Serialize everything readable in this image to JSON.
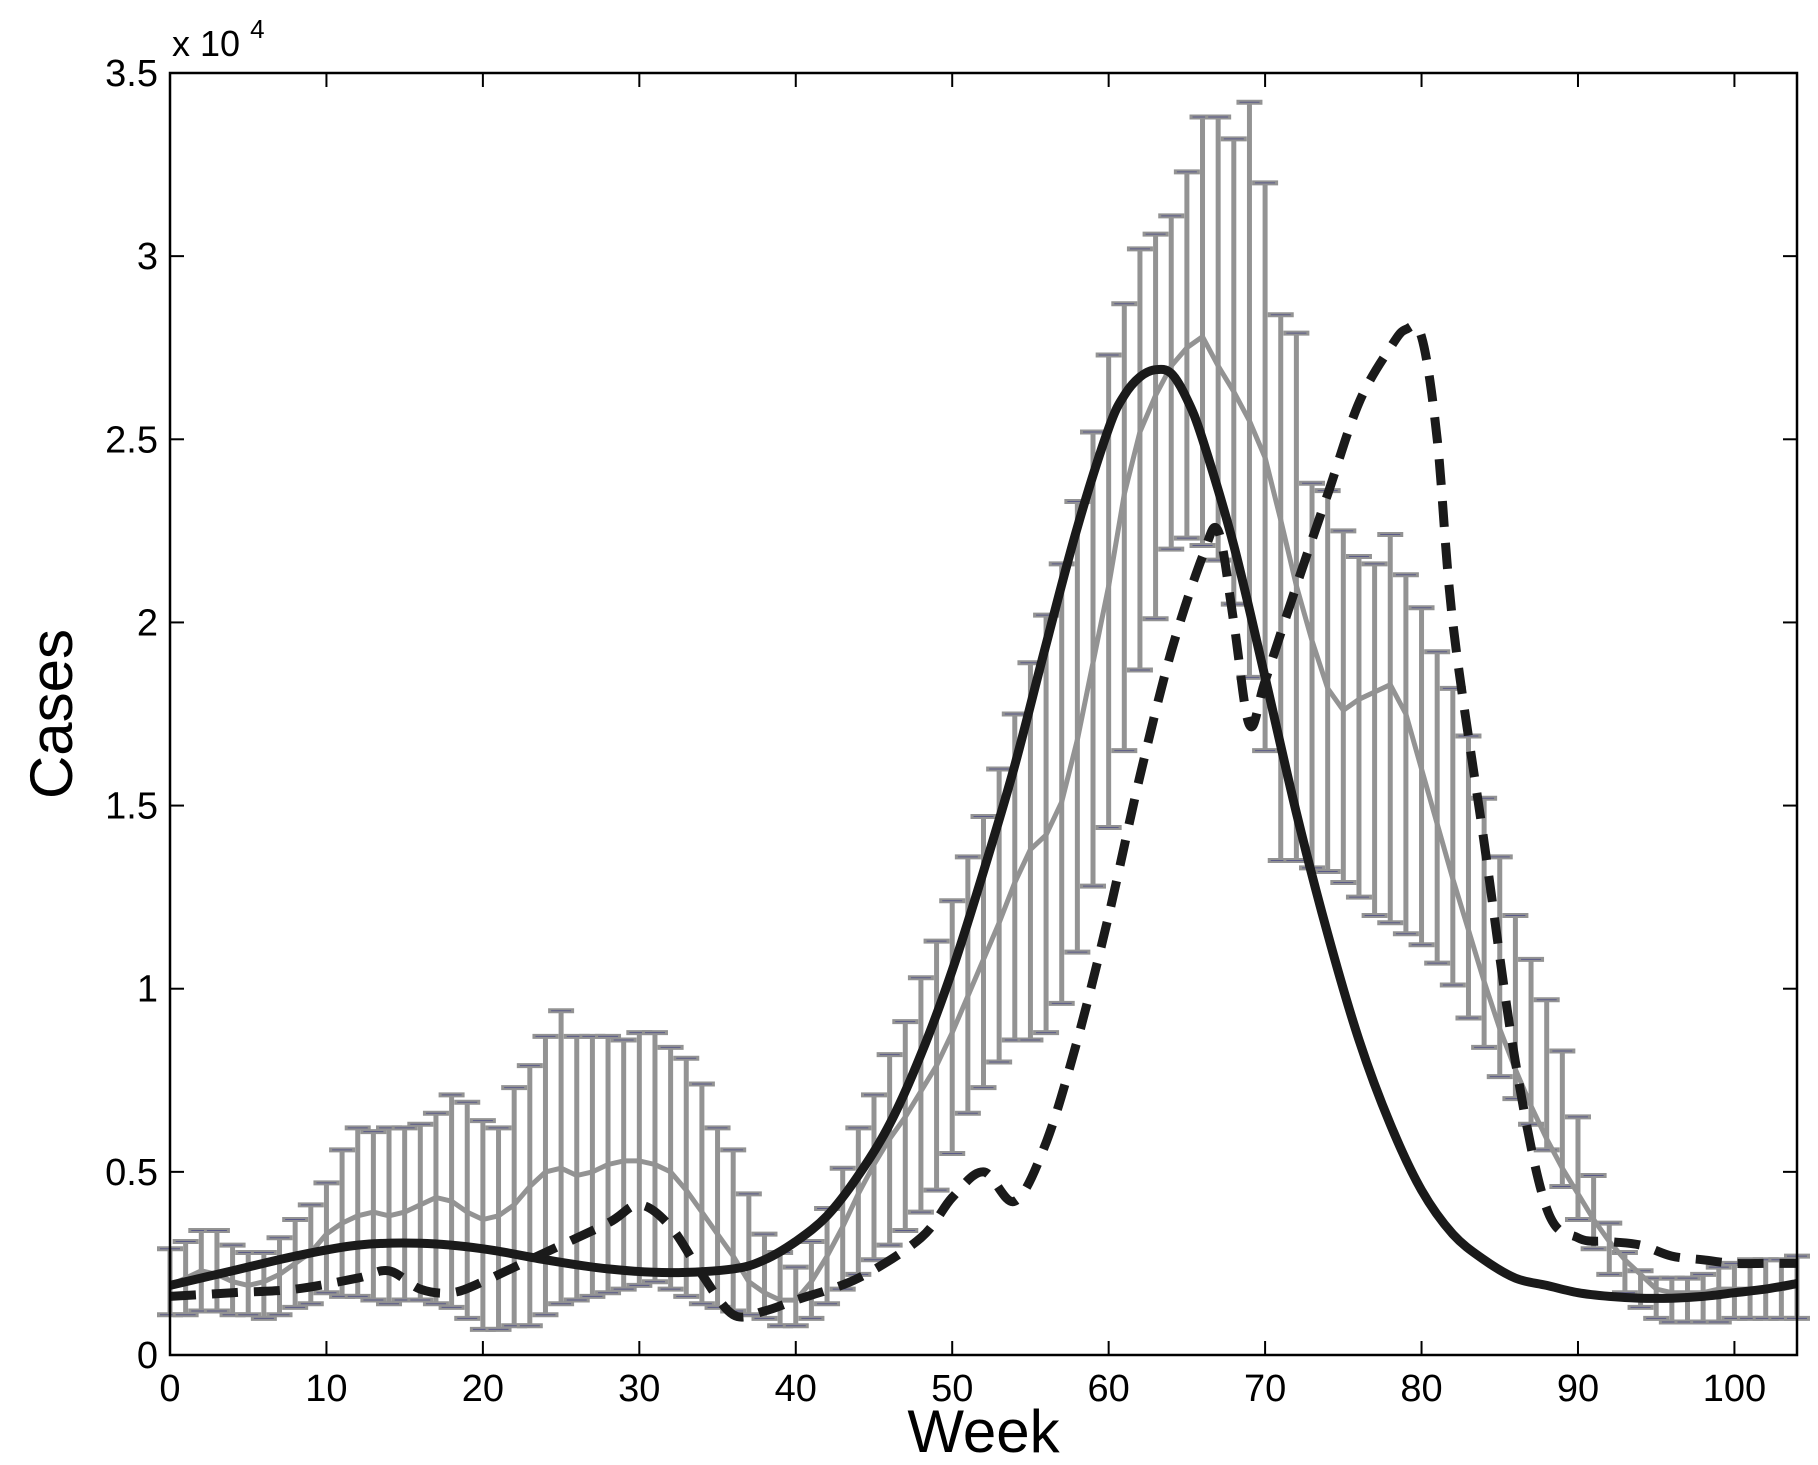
{
  "chart_data": {
    "type": "line",
    "title": "",
    "xlabel": "Week",
    "ylabel": "Cases",
    "y_multiplier_label": {
      "base": "x 10",
      "exponent": "4"
    },
    "xlim": [
      0,
      104
    ],
    "ylim": [
      0,
      35000
    ],
    "xticks": [
      0,
      10,
      20,
      30,
      40,
      50,
      60,
      70,
      80,
      90,
      100
    ],
    "xtick_labels": [
      "0",
      "10",
      "20",
      "30",
      "40",
      "50",
      "60",
      "70",
      "80",
      "90",
      "100"
    ],
    "yticks": [
      0,
      5000,
      10000,
      15000,
      20000,
      25000,
      30000,
      35000
    ],
    "ytick_labels": [
      "0",
      "0.5",
      "1",
      "1.5",
      "2",
      "2.5",
      "3",
      "3.5"
    ],
    "grid": false,
    "legend": "none",
    "colors": {
      "observed": "#939393",
      "model": "#1a1a1a",
      "errorbar_cap": "#5a5a88"
    },
    "series": [
      {
        "style": "gray-errorbars",
        "x": [
          0,
          1,
          2,
          3,
          4,
          5,
          6,
          7,
          8,
          9,
          10,
          11,
          12,
          13,
          14,
          15,
          16,
          17,
          18,
          19,
          20,
          21,
          22,
          23,
          24,
          25,
          26,
          27,
          28,
          29,
          30,
          31,
          32,
          33,
          34,
          35,
          36,
          37,
          38,
          39,
          40,
          41,
          42,
          43,
          44,
          45,
          46,
          47,
          48,
          49,
          50,
          51,
          52,
          53,
          54,
          55,
          56,
          57,
          58,
          59,
          60,
          61,
          62,
          63,
          64,
          65,
          66,
          67,
          68,
          69,
          70,
          71,
          72,
          73,
          74,
          75,
          76,
          77,
          78,
          79,
          80,
          81,
          82,
          83,
          84,
          85,
          86,
          87,
          88,
          89,
          90,
          91,
          92,
          93,
          94,
          95,
          96,
          97,
          98,
          99,
          100,
          101,
          102,
          103,
          104
        ],
        "y": [
          1900,
          2100,
          2300,
          2200,
          2000,
          1900,
          2000,
          2200,
          2500,
          2800,
          3300,
          3600,
          3800,
          3900,
          3800,
          3900,
          4100,
          4300,
          4200,
          3900,
          3700,
          3800,
          4100,
          4600,
          5000,
          5100,
          4900,
          5000,
          5200,
          5300,
          5300,
          5200,
          5000,
          4500,
          3900,
          3300,
          2700,
          2000,
          1700,
          1500,
          1500,
          2000,
          2700,
          3500,
          4400,
          5200,
          5900,
          6500,
          7200,
          7900,
          8800,
          9800,
          10800,
          11800,
          12900,
          13800,
          14200,
          15100,
          16800,
          18900,
          21000,
          23500,
          25200,
          26200,
          27000,
          27500,
          27800,
          27000,
          26300,
          25500,
          24500,
          22800,
          21000,
          19500,
          18200,
          17600,
          17900,
          18100,
          18300,
          17500,
          16000,
          14500,
          13000,
          11600,
          10200,
          8900,
          7800,
          6800,
          5900,
          5100,
          4400,
          3700,
          3100,
          2600,
          2200,
          1800,
          1700,
          1700,
          1700,
          1800,
          1800,
          1800,
          1800,
          1800,
          1900
        ],
        "lower": [
          1100,
          1100,
          1200,
          1200,
          1100,
          1100,
          1000,
          1100,
          1300,
          1400,
          1700,
          1600,
          1600,
          1500,
          1400,
          1500,
          1500,
          1400,
          1300,
          1000,
          700,
          700,
          800,
          800,
          1100,
          1400,
          1500,
          1600,
          1700,
          1800,
          1900,
          2000,
          1800,
          1600,
          1400,
          1300,
          1200,
          1100,
          1000,
          800,
          800,
          1000,
          1400,
          1800,
          2200,
          2600,
          3000,
          3400,
          3900,
          4500,
          5500,
          6600,
          7300,
          8000,
          8600,
          8600,
          8800,
          9600,
          11000,
          12800,
          14400,
          16500,
          18700,
          20100,
          22000,
          22300,
          22100,
          21700,
          20500,
          18500,
          16500,
          13500,
          13500,
          13300,
          13200,
          12900,
          12500,
          12000,
          11800,
          11500,
          11200,
          10700,
          10100,
          9200,
          8400,
          7600,
          7000,
          6300,
          5600,
          4600,
          3700,
          2900,
          2200,
          1700,
          1300,
          1000,
          900,
          900,
          900,
          900,
          1000,
          1000,
          1000,
          1000,
          1000
        ],
        "upper": [
          2900,
          3100,
          3400,
          3400,
          3000,
          2800,
          2800,
          3200,
          3700,
          4100,
          4700,
          5600,
          6200,
          6100,
          6200,
          6200,
          6300,
          6600,
          7100,
          6900,
          6400,
          6200,
          7300,
          7900,
          8700,
          9400,
          8700,
          8700,
          8700,
          8600,
          8800,
          8800,
          8400,
          8100,
          7400,
          6200,
          5600,
          4400,
          3300,
          2800,
          2400,
          3100,
          4000,
          5100,
          6200,
          7100,
          8200,
          9100,
          10300,
          11300,
          12400,
          13600,
          14700,
          16000,
          17500,
          18900,
          20200,
          21600,
          23300,
          25200,
          27300,
          28700,
          30200,
          30600,
          31100,
          32300,
          33800,
          33800,
          33200,
          34200,
          32000,
          28400,
          27900,
          23800,
          23600,
          22500,
          21800,
          21600,
          22400,
          21300,
          20400,
          19200,
          18200,
          16900,
          15200,
          13600,
          12000,
          10800,
          9700,
          8300,
          6500,
          4900,
          3600,
          2800,
          2300,
          2100,
          2100,
          2100,
          2200,
          2400,
          2500,
          2600,
          2600,
          2600,
          2700
        ]
      },
      {
        "style": "solid",
        "x": [
          0,
          4,
          8,
          12,
          16,
          20,
          24,
          28,
          32,
          36,
          38,
          40,
          42,
          44,
          46,
          48,
          50,
          52,
          54,
          56,
          58,
          60,
          61,
          62,
          63,
          64,
          65,
          66,
          68,
          70,
          72,
          74,
          76,
          78,
          80,
          82,
          84,
          86,
          88,
          90,
          92,
          94,
          96,
          98,
          100,
          102,
          104
        ],
        "y": [
          1900,
          2300,
          2700,
          3000,
          3050,
          2900,
          2600,
          2350,
          2250,
          2350,
          2600,
          3100,
          3800,
          4900,
          6300,
          8200,
          10500,
          13200,
          16100,
          19400,
          22600,
          25300,
          26200,
          26700,
          26900,
          26800,
          26100,
          25000,
          22100,
          18500,
          14800,
          11500,
          8600,
          6300,
          4500,
          3300,
          2600,
          2100,
          1900,
          1700,
          1600,
          1550,
          1550,
          1600,
          1700,
          1800,
          1950
        ]
      },
      {
        "style": "dashed",
        "x": [
          0,
          4,
          8,
          12,
          14,
          16,
          18,
          20,
          24,
          28,
          30,
          32,
          34,
          36,
          38,
          40,
          44,
          48,
          50,
          52,
          54,
          56,
          58,
          60,
          62,
          64,
          66,
          67,
          68,
          69,
          70,
          72,
          74,
          76,
          78,
          79,
          80,
          81,
          82,
          84,
          86,
          88,
          90,
          92,
          94,
          96,
          98,
          100,
          102,
          104
        ],
        "y": [
          1600,
          1700,
          1800,
          2100,
          2300,
          1800,
          1700,
          2000,
          2800,
          3600,
          4100,
          3500,
          2200,
          1100,
          1200,
          1500,
          2100,
          3200,
          4300,
          5000,
          4200,
          5800,
          8600,
          12000,
          15800,
          19200,
          21800,
          22500,
          20000,
          17200,
          18400,
          21000,
          23500,
          26000,
          27500,
          28000,
          27800,
          25000,
          20000,
          14000,
          8000,
          4000,
          3200,
          3100,
          3000,
          2700,
          2600,
          2500,
          2500,
          2500
        ]
      }
    ]
  }
}
